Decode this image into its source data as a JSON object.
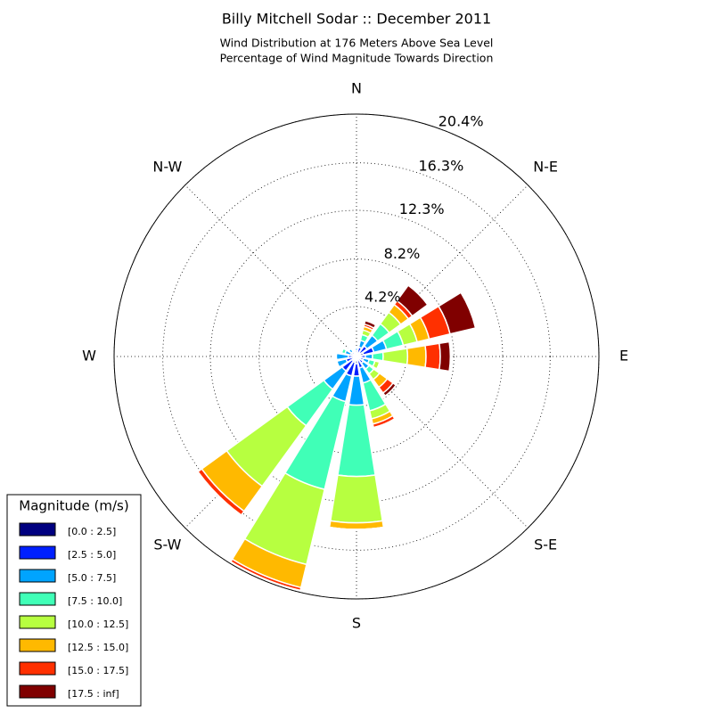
{
  "chart_data": {
    "type": "windrose",
    "title": "Billy Mitchell Sodar :: December 2011",
    "subtitle": [
      "Wind Distribution at 176 Meters Above Sea Level",
      "Percentage of Wind Magnitude Towards Direction"
    ],
    "categories": [
      "N",
      null,
      "N-E",
      null,
      "E",
      null,
      "S-E",
      null,
      "S",
      null,
      "S-W",
      null,
      "W",
      null,
      "N-W",
      null
    ],
    "rlim": [
      0,
      20.4
    ],
    "rticks": [
      {
        "value": 4.2,
        "label": "4.2%"
      },
      {
        "value": 8.2,
        "label": "8.2%"
      },
      {
        "value": 12.3,
        "label": "12.3%"
      },
      {
        "value": 16.3,
        "label": "16.3%"
      },
      {
        "value": 20.4,
        "label": "20.4%"
      }
    ],
    "grid": true,
    "legend_title": "Magnitude (m/s)",
    "legend": "lower left",
    "series": [
      {
        "name": "[0.0 : 2.5]",
        "color": "#000080",
        "values": [
          0.2,
          0.3,
          0.4,
          0.6,
          0.37,
          0.2,
          0.2,
          0.3,
          0.6,
          0.5,
          0.45,
          0.3,
          0.3,
          0.2,
          0.2,
          0.2
        ]
      },
      {
        "name": "[2.5 : 5.0]",
        "color": "#0020ff",
        "values": [
          0.3,
          0.5,
          0.7,
          0.9,
          0.38,
          0.4,
          0.5,
          0.7,
          1.05,
          1.2,
          1.05,
          0.6,
          0.4,
          0.3,
          0.3,
          0.2
        ]
      },
      {
        "name": "[5.0 : 7.5]",
        "color": "#00a4ff",
        "values": [
          0.2,
          0.6,
          1.1,
          1.1,
          0.6,
          0.5,
          0.6,
          1.3,
          2.45,
          2.2,
          1.9,
          0.8,
          1.0,
          0.5,
          0.3,
          0.1
        ]
      },
      {
        "name": "[7.5 : 10.0]",
        "color": "#40ffb7",
        "values": [
          0,
          0.5,
          1.2,
          1.45,
          0.9,
          0.5,
          0.5,
          2.4,
          6.0,
          7.6,
          3.8,
          0.1,
          0.1,
          0.3,
          0.1,
          0
        ]
      },
      {
        "name": "[10.0 : 12.5]",
        "color": "#b7ff40",
        "values": [
          0,
          0.4,
          1.2,
          1.2,
          2.05,
          0.4,
          0.6,
          0.7,
          3.9,
          6.5,
          6.3,
          0,
          0,
          0,
          0,
          0
        ]
      },
      {
        "name": "[12.5 : 15.0]",
        "color": "#ffb900",
        "values": [
          0,
          0.3,
          0.8,
          1.05,
          1.55,
          0.1,
          0.8,
          0.45,
          0.55,
          2.0,
          2.6,
          0,
          0,
          0,
          0,
          0
        ]
      },
      {
        "name": "[15.0 : 17.5]",
        "color": "#ff3000",
        "values": [
          0,
          0.2,
          0.4,
          1.8,
          1.2,
          0,
          0.6,
          0.3,
          0,
          0.25,
          0.4,
          0,
          0,
          0,
          0,
          0
        ]
      },
      {
        "name": "[17.5 : inf]",
        "color": "#800000",
        "values": [
          0,
          0.3,
          1.6,
          2.2,
          0.85,
          0,
          0.3,
          0,
          0,
          0,
          0,
          0,
          0,
          0,
          0,
          0
        ]
      }
    ]
  }
}
